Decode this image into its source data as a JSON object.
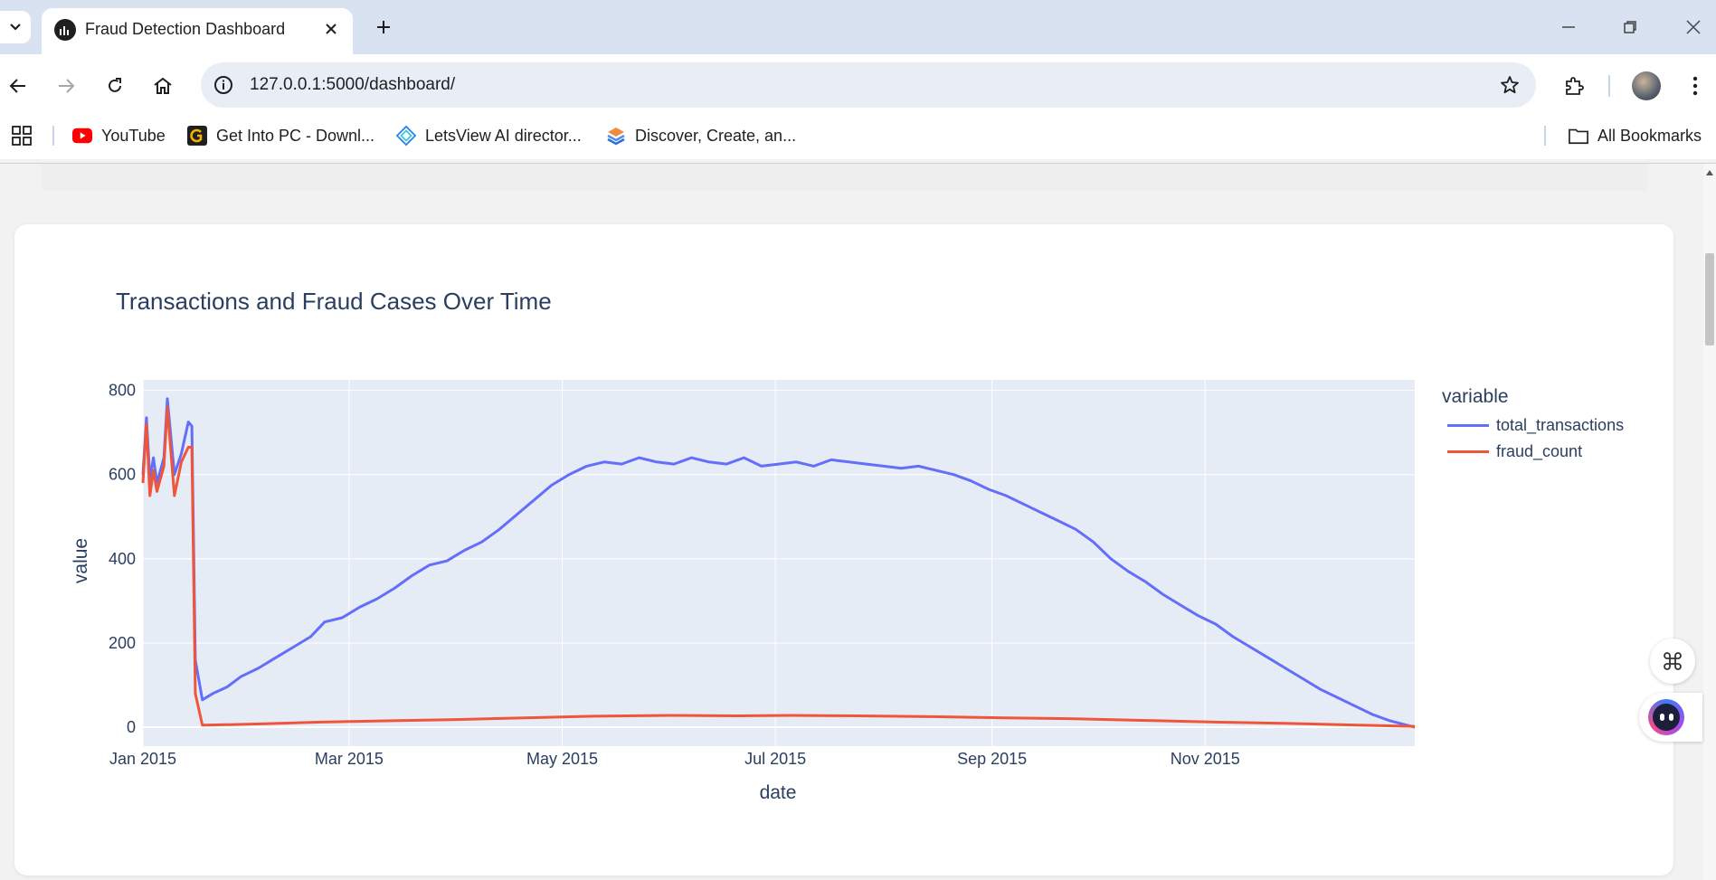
{
  "browser": {
    "tab_title": "Fraud Detection Dashboard",
    "url": "127.0.0.1:5000/dashboard/",
    "bookmarks": [
      {
        "label": "YouTube",
        "icon": "youtube-icon"
      },
      {
        "label": "Get Into PC - Downl...",
        "icon": "getintopc-icon"
      },
      {
        "label": "LetsView AI director...",
        "icon": "letsview-icon"
      },
      {
        "label": "Discover, Create, an...",
        "icon": "discover-icon"
      }
    ],
    "all_bookmarks_label": "All Bookmarks"
  },
  "colors": {
    "accent_blue": "#636efa",
    "accent_red": "#ef553b",
    "plot_bg": "#e5ecf6",
    "text": "#2a3f5f"
  },
  "chart_data": {
    "type": "line",
    "title": "Transactions and Fraud Cases Over Time",
    "xlabel": "date",
    "ylabel": "value",
    "legend_title": "variable",
    "legend_position": "right",
    "x_ticks": [
      "Jan 2015",
      "Mar 2015",
      "May 2015",
      "Jul 2015",
      "Sep 2015",
      "Nov 2015"
    ],
    "y_ticks": [
      0,
      200,
      400,
      600,
      800
    ],
    "ylim": [
      -45,
      825
    ],
    "xlim": [
      "2015-01-01",
      "2015-12-31"
    ],
    "series": [
      {
        "name": "total_transactions",
        "color": "#636efa",
        "points": [
          [
            "2015-01-01",
            600
          ],
          [
            "2015-01-02",
            735
          ],
          [
            "2015-01-03",
            590
          ],
          [
            "2015-01-04",
            640
          ],
          [
            "2015-01-05",
            580
          ],
          [
            "2015-01-07",
            640
          ],
          [
            "2015-01-08",
            780
          ],
          [
            "2015-01-10",
            600
          ],
          [
            "2015-01-12",
            650
          ],
          [
            "2015-01-14",
            725
          ],
          [
            "2015-01-15",
            715
          ],
          [
            "2015-01-16",
            160
          ],
          [
            "2015-01-18",
            65
          ],
          [
            "2015-01-21",
            80
          ],
          [
            "2015-01-25",
            95
          ],
          [
            "2015-01-29",
            120
          ],
          [
            "2015-02-03",
            140
          ],
          [
            "2015-02-08",
            165
          ],
          [
            "2015-02-13",
            190
          ],
          [
            "2015-02-18",
            215
          ],
          [
            "2015-02-22",
            250
          ],
          [
            "2015-02-27",
            260
          ],
          [
            "2015-03-04",
            285
          ],
          [
            "2015-03-09",
            305
          ],
          [
            "2015-03-14",
            330
          ],
          [
            "2015-03-19",
            360
          ],
          [
            "2015-03-24",
            385
          ],
          [
            "2015-03-29",
            395
          ],
          [
            "2015-04-03",
            420
          ],
          [
            "2015-04-08",
            440
          ],
          [
            "2015-04-13",
            470
          ],
          [
            "2015-04-18",
            505
          ],
          [
            "2015-04-23",
            540
          ],
          [
            "2015-04-28",
            575
          ],
          [
            "2015-05-03",
            600
          ],
          [
            "2015-05-08",
            620
          ],
          [
            "2015-05-13",
            630
          ],
          [
            "2015-05-18",
            625
          ],
          [
            "2015-05-23",
            640
          ],
          [
            "2015-05-28",
            630
          ],
          [
            "2015-06-02",
            625
          ],
          [
            "2015-06-07",
            640
          ],
          [
            "2015-06-12",
            630
          ],
          [
            "2015-06-17",
            625
          ],
          [
            "2015-06-22",
            640
          ],
          [
            "2015-06-27",
            620
          ],
          [
            "2015-07-02",
            625
          ],
          [
            "2015-07-07",
            630
          ],
          [
            "2015-07-12",
            620
          ],
          [
            "2015-07-17",
            635
          ],
          [
            "2015-07-22",
            630
          ],
          [
            "2015-07-27",
            625
          ],
          [
            "2015-08-01",
            620
          ],
          [
            "2015-08-06",
            615
          ],
          [
            "2015-08-11",
            620
          ],
          [
            "2015-08-16",
            610
          ],
          [
            "2015-08-21",
            600
          ],
          [
            "2015-08-26",
            585
          ],
          [
            "2015-08-31",
            565
          ],
          [
            "2015-09-05",
            550
          ],
          [
            "2015-09-10",
            530
          ],
          [
            "2015-09-15",
            510
          ],
          [
            "2015-09-20",
            490
          ],
          [
            "2015-09-25",
            470
          ],
          [
            "2015-09-30",
            440
          ],
          [
            "2015-10-05",
            400
          ],
          [
            "2015-10-10",
            370
          ],
          [
            "2015-10-15",
            345
          ],
          [
            "2015-10-20",
            315
          ],
          [
            "2015-10-25",
            290
          ],
          [
            "2015-10-30",
            265
          ],
          [
            "2015-11-04",
            245
          ],
          [
            "2015-11-09",
            215
          ],
          [
            "2015-11-14",
            190
          ],
          [
            "2015-11-19",
            165
          ],
          [
            "2015-11-24",
            140
          ],
          [
            "2015-11-29",
            115
          ],
          [
            "2015-12-04",
            90
          ],
          [
            "2015-12-09",
            70
          ],
          [
            "2015-12-14",
            50
          ],
          [
            "2015-12-19",
            30
          ],
          [
            "2015-12-24",
            15
          ],
          [
            "2015-12-31",
            0
          ]
        ]
      },
      {
        "name": "fraud_count",
        "color": "#ef553b",
        "points": [
          [
            "2015-01-01",
            580
          ],
          [
            "2015-01-02",
            720
          ],
          [
            "2015-01-03",
            550
          ],
          [
            "2015-01-04",
            610
          ],
          [
            "2015-01-05",
            560
          ],
          [
            "2015-01-07",
            620
          ],
          [
            "2015-01-08",
            760
          ],
          [
            "2015-01-10",
            550
          ],
          [
            "2015-01-12",
            630
          ],
          [
            "2015-01-14",
            665
          ],
          [
            "2015-01-15",
            665
          ],
          [
            "2015-01-16",
            80
          ],
          [
            "2015-01-18",
            5
          ],
          [
            "2015-01-25",
            6
          ],
          [
            "2015-02-05",
            8
          ],
          [
            "2015-02-20",
            12
          ],
          [
            "2015-03-10",
            15
          ],
          [
            "2015-03-30",
            18
          ],
          [
            "2015-04-20",
            22
          ],
          [
            "2015-05-10",
            26
          ],
          [
            "2015-06-01",
            28
          ],
          [
            "2015-06-20",
            27
          ],
          [
            "2015-07-05",
            28
          ],
          [
            "2015-07-25",
            27
          ],
          [
            "2015-08-15",
            25
          ],
          [
            "2015-09-05",
            22
          ],
          [
            "2015-09-25",
            20
          ],
          [
            "2015-10-15",
            16
          ],
          [
            "2015-11-05",
            12
          ],
          [
            "2015-11-25",
            9
          ],
          [
            "2015-12-15",
            5
          ],
          [
            "2015-12-31",
            2
          ]
        ]
      }
    ]
  }
}
